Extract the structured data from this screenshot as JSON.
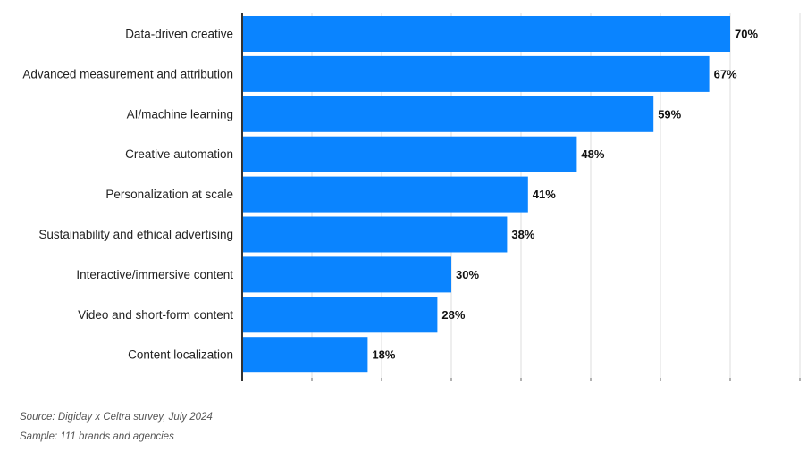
{
  "chart_data": {
    "type": "bar",
    "orientation": "horizontal",
    "categories": [
      "Data-driven creative",
      "Advanced measurement and attribution",
      "AI/machine learning",
      "Creative automation",
      "Personalization at scale",
      "Sustainability and ethical advertising",
      "Interactive/immersive content",
      "Video and short-form content",
      "Content localization"
    ],
    "values": [
      70,
      67,
      59,
      48,
      41,
      38,
      30,
      28,
      18
    ],
    "value_labels": [
      "70%",
      "67%",
      "59%",
      "48%",
      "41%",
      "38%",
      "30%",
      "28%",
      "18%"
    ],
    "xlim": [
      0,
      80
    ],
    "grid": true,
    "bar_color": "#0a84ff"
  },
  "source": "Source: Digiday x Celtra survey, July 2024",
  "sample": "Sample: 111 brands and agencies"
}
